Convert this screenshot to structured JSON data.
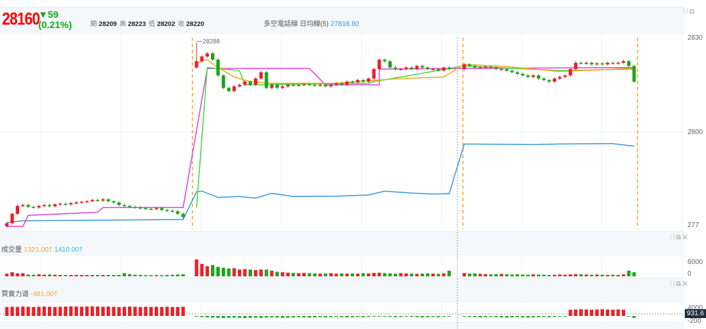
{
  "header": {
    "price": "28160",
    "change": "▼59",
    "change_pct": "(0.21%)",
    "open_label": "開",
    "open": "28209",
    "high_label": "高",
    "high": "28223",
    "low_label": "低",
    "low": "28202",
    "close_label": "收",
    "close": "28220",
    "ma_label": "多空電話線 日均線(5)",
    "ma_value": "27818.80"
  },
  "main_axis": [
    "2830",
    "2800",
    "277"
  ],
  "peak_label": "28288",
  "volume": {
    "label": "成交量",
    "v1": "1321.00†",
    "v2": "1410.00†",
    "axis": [
      "6000",
      "0"
    ]
  },
  "force": {
    "label": "買賣力道",
    "v1": "-481.00†",
    "axis": [
      "4000",
      "-200"
    ],
    "current": "931.6"
  },
  "colors": {
    "up": "#e8202a",
    "down": "#1aa51a",
    "orange": "#f5a623",
    "blue": "#3a9ad9",
    "magenta": "#e040e0",
    "green": "#3ddc3d"
  },
  "chart_data": {
    "type": "candlestick",
    "closes": [
      27710,
      27740,
      27765,
      27768,
      27762,
      27760,
      27765,
      27768,
      27764,
      27770,
      27772,
      27770,
      27774,
      27776,
      27778,
      27780,
      27784,
      27782,
      27786,
      27780,
      27776,
      27768,
      27765,
      27762,
      27760,
      27758,
      27756,
      27755,
      27758,
      27752,
      27750,
      27748,
      27740,
      27730,
      28225,
      28240,
      28250,
      28230,
      28180,
      28140,
      28130,
      28145,
      28150,
      28160,
      28150,
      28170,
      28190,
      28140,
      28150,
      28140,
      28145,
      28150,
      28148,
      28150,
      28152,
      28150,
      28148,
      28150,
      28145,
      28150,
      28155,
      28150,
      28160,
      28158,
      28165,
      28160,
      28170,
      28200,
      28230,
      28225,
      28205,
      28200,
      28200,
      28205,
      28200,
      28210,
      28205,
      28200,
      28200,
      28195,
      28205,
      28200,
      28215,
      28210,
      28205,
      28205,
      28208,
      28205,
      28200,
      28200,
      28195,
      28190,
      28185,
      28180,
      28175,
      28180,
      28170,
      28165,
      28160,
      28170,
      28175,
      28180,
      28200,
      28220,
      28218,
      28220,
      28215,
      28218,
      28215,
      28220,
      28218,
      28220,
      28225,
      28210,
      28160
    ],
    "volume": [
      1200,
      1800,
      1300,
      1400,
      800,
      700,
      900,
      700,
      800,
      700,
      600,
      600,
      600,
      600,
      600,
      600,
      600,
      600,
      600,
      600,
      600,
      600,
      1400,
      900,
      700,
      600,
      500,
      500,
      500,
      500,
      600,
      700,
      800,
      900,
      7500,
      5500,
      4500,
      5000,
      4200,
      3800,
      3500,
      3600,
      3000,
      3200,
      3000,
      2800,
      3000,
      3000,
      2500,
      2000,
      1800,
      1600,
      1500,
      1400,
      1500,
      1400,
      1300,
      1200,
      1300,
      1400,
      1200,
      1300,
      1200,
      1300,
      1200,
      1400,
      1300,
      1500,
      1600,
      1400,
      1300,
      1200,
      1400,
      1300,
      1200,
      1100,
      1200,
      1300,
      1200,
      1100,
      1300,
      2500,
      1500,
      1200,
      1300,
      1100,
      1000,
      900,
      1000,
      1100,
      900,
      800,
      900,
      800,
      700,
      900,
      800,
      700,
      600,
      700,
      800,
      700,
      900,
      1000,
      900,
      800,
      700,
      800,
      700,
      600,
      700,
      600,
      800,
      2500,
      1800
    ],
    "lines": {
      "blue": [
        [
          0,
          27712
        ],
        [
          3,
          27718
        ],
        [
          20,
          27720
        ],
        [
          33,
          27722
        ],
        [
          34,
          27810
        ],
        [
          35,
          27812
        ],
        [
          38,
          27792
        ],
        [
          42,
          27795
        ],
        [
          45,
          27790
        ],
        [
          48,
          27805
        ],
        [
          52,
          27795
        ],
        [
          60,
          27796
        ],
        [
          66,
          27800
        ],
        [
          69,
          27812
        ],
        [
          74,
          27806
        ],
        [
          78,
          27803
        ],
        [
          81,
          27804
        ],
        [
          82,
          27962
        ],
        [
          95,
          27960
        ],
        [
          100,
          27962
        ],
        [
          110,
          27963
        ],
        [
          114,
          27955
        ]
      ],
      "magenta": [
        [
          0,
          27700
        ],
        [
          3,
          27700
        ],
        [
          4,
          27735
        ],
        [
          17,
          27745
        ],
        [
          18,
          27760
        ],
        [
          33,
          27760
        ],
        [
          36,
          28202
        ],
        [
          55,
          28202
        ],
        [
          58,
          28150
        ],
        [
          68,
          28150
        ],
        [
          68,
          28200
        ],
        [
          82,
          28202
        ],
        [
          114,
          28205
        ]
      ],
      "green": [
        [
          34,
          27760
        ],
        [
          36,
          28205
        ],
        [
          42,
          28195
        ],
        [
          43,
          28150
        ],
        [
          66,
          28155
        ],
        [
          67,
          28160
        ],
        [
          82,
          28210
        ],
        [
          100,
          28195
        ],
        [
          114,
          28200
        ]
      ],
      "orange": [
        [
          34,
          28220
        ],
        [
          36,
          28230
        ],
        [
          38,
          28205
        ],
        [
          41,
          28175
        ],
        [
          44,
          28160
        ],
        [
          48,
          28155
        ],
        [
          60,
          28155
        ],
        [
          70,
          28168
        ],
        [
          80,
          28175
        ],
        [
          82,
          28215
        ],
        [
          90,
          28208
        ],
        [
          100,
          28192
        ],
        [
          108,
          28198
        ],
        [
          114,
          28203
        ]
      ]
    },
    "force": [
      4000,
      4100,
      4000,
      4200,
      4100,
      4000,
      4100,
      4200,
      4100,
      4000,
      4100,
      4200,
      4300,
      4200,
      4100,
      4200,
      4300,
      4200,
      4100,
      4200,
      4100,
      4000,
      4100,
      4200,
      4100,
      4000,
      4100,
      4000,
      4100,
      4000,
      4100,
      4000,
      4000,
      4100,
      -300,
      -500,
      -600,
      -700,
      -800,
      -900,
      -800,
      -700,
      -800,
      -900,
      -800,
      -700,
      -800,
      -700,
      -600,
      -700,
      -800,
      -700,
      -600,
      -500,
      -600,
      -700,
      -600,
      -500,
      -600,
      -500,
      -400,
      -500,
      -600,
      -500,
      -400,
      -500,
      -400,
      -300,
      -200,
      -300,
      -400,
      -500,
      -400,
      -300,
      -400,
      -500,
      -600,
      -500,
      -400,
      -500,
      -300,
      -200,
      -300,
      -400,
      -500,
      -600,
      -500,
      -400,
      -500,
      -600,
      -700,
      -600,
      -500,
      -600,
      -700,
      -600,
      -500,
      -400,
      -500,
      -400,
      -300,
      -200,
      2800,
      2900,
      3000,
      2900,
      2800,
      2900,
      3000,
      2900,
      2800,
      2900,
      2800,
      -300,
      -800
    ]
  }
}
